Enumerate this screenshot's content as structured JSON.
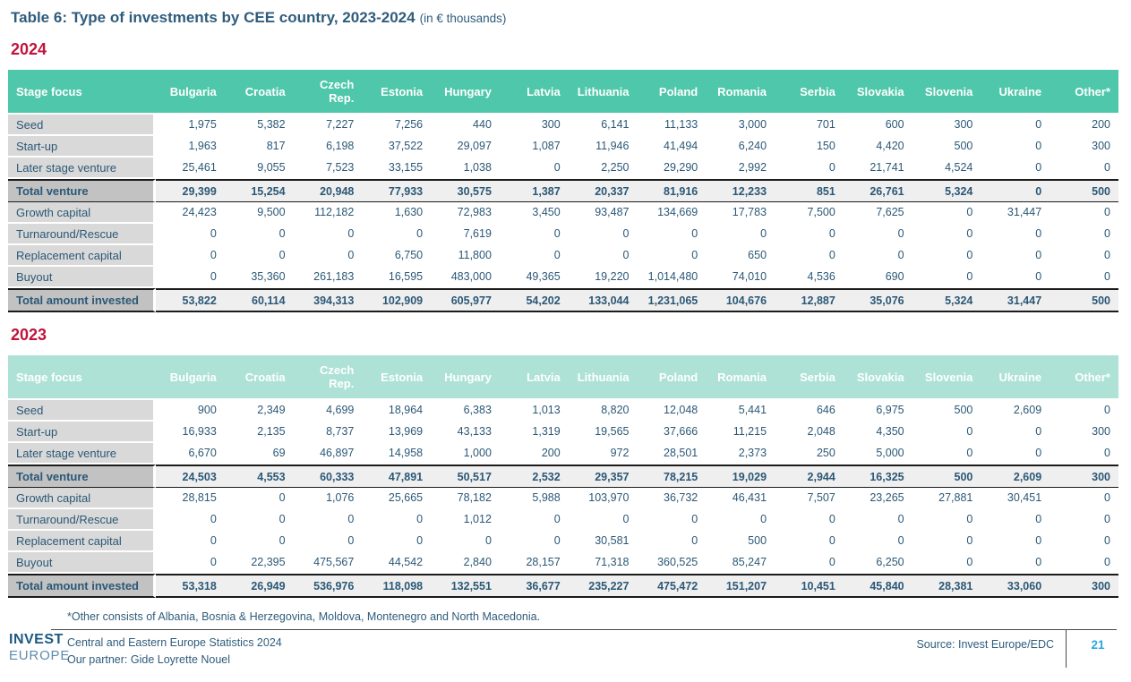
{
  "title": {
    "main": "Table 6: Type of investments by CEE country, 2023-2024",
    "unit": "(in € thousands)"
  },
  "columns": [
    "Stage focus",
    "Bulgaria",
    "Croatia",
    "Czech Rep.",
    "Estonia",
    "Hungary",
    "Latvia",
    "Lithuania",
    "Poland",
    "Romania",
    "Serbia",
    "Slovakia",
    "Slovenia",
    "Ukraine",
    "Other*"
  ],
  "tables": [
    {
      "year": "2024",
      "rows": [
        {
          "label": "Seed",
          "values": [
            "1,975",
            "5,382",
            "7,227",
            "7,256",
            "440",
            "300",
            "6,141",
            "11,133",
            "3,000",
            "701",
            "600",
            "300",
            "0",
            "200"
          ]
        },
        {
          "label": "Start-up",
          "values": [
            "1,963",
            "817",
            "6,198",
            "37,522",
            "29,097",
            "1,087",
            "11,946",
            "41,494",
            "6,240",
            "150",
            "4,420",
            "500",
            "0",
            "300"
          ]
        },
        {
          "label": "Later stage venture",
          "values": [
            "25,461",
            "9,055",
            "7,523",
            "33,155",
            "1,038",
            "0",
            "2,250",
            "29,290",
            "2,992",
            "0",
            "21,741",
            "4,524",
            "0",
            "0"
          ]
        },
        {
          "label": "Total venture",
          "total": true,
          "values": [
            "29,399",
            "15,254",
            "20,948",
            "77,933",
            "30,575",
            "1,387",
            "20,337",
            "81,916",
            "12,233",
            "851",
            "26,761",
            "5,324",
            "0",
            "500"
          ]
        },
        {
          "label": "Growth capital",
          "values": [
            "24,423",
            "9,500",
            "112,182",
            "1,630",
            "72,983",
            "3,450",
            "93,487",
            "134,669",
            "17,783",
            "7,500",
            "7,625",
            "0",
            "31,447",
            "0"
          ]
        },
        {
          "label": "Turnaround/Rescue",
          "values": [
            "0",
            "0",
            "0",
            "0",
            "7,619",
            "0",
            "0",
            "0",
            "0",
            "0",
            "0",
            "0",
            "0",
            "0"
          ]
        },
        {
          "label": "Replacement capital",
          "values": [
            "0",
            "0",
            "0",
            "6,750",
            "11,800",
            "0",
            "0",
            "0",
            "650",
            "0",
            "0",
            "0",
            "0",
            "0"
          ]
        },
        {
          "label": "Buyout",
          "values": [
            "0",
            "35,360",
            "261,183",
            "16,595",
            "483,000",
            "49,365",
            "19,220",
            "1,014,480",
            "74,010",
            "4,536",
            "690",
            "0",
            "0",
            "0"
          ]
        },
        {
          "label": "Total amount invested",
          "total": true,
          "values": [
            "53,822",
            "60,114",
            "394,313",
            "102,909",
            "605,977",
            "54,202",
            "133,044",
            "1,231,065",
            "104,676",
            "12,887",
            "35,076",
            "5,324",
            "31,447",
            "500"
          ]
        }
      ]
    },
    {
      "year": "2023",
      "rows": [
        {
          "label": "Seed",
          "values": [
            "900",
            "2,349",
            "4,699",
            "18,964",
            "6,383",
            "1,013",
            "8,820",
            "12,048",
            "5,441",
            "646",
            "6,975",
            "500",
            "2,609",
            "0"
          ]
        },
        {
          "label": "Start-up",
          "values": [
            "16,933",
            "2,135",
            "8,737",
            "13,969",
            "43,133",
            "1,319",
            "19,565",
            "37,666",
            "11,215",
            "2,048",
            "4,350",
            "0",
            "0",
            "300"
          ]
        },
        {
          "label": "Later stage venture",
          "values": [
            "6,670",
            "69",
            "46,897",
            "14,958",
            "1,000",
            "200",
            "972",
            "28,501",
            "2,373",
            "250",
            "5,000",
            "0",
            "0",
            "0"
          ]
        },
        {
          "label": "Total venture",
          "total": true,
          "values": [
            "24,503",
            "4,553",
            "60,333",
            "47,891",
            "50,517",
            "2,532",
            "29,357",
            "78,215",
            "19,029",
            "2,944",
            "16,325",
            "500",
            "2,609",
            "300"
          ]
        },
        {
          "label": "Growth capital",
          "values": [
            "28,815",
            "0",
            "1,076",
            "25,665",
            "78,182",
            "5,988",
            "103,970",
            "36,732",
            "46,431",
            "7,507",
            "23,265",
            "27,881",
            "30,451",
            "0"
          ]
        },
        {
          "label": "Turnaround/Rescue",
          "values": [
            "0",
            "0",
            "0",
            "0",
            "1,012",
            "0",
            "0",
            "0",
            "0",
            "0",
            "0",
            "0",
            "0",
            "0"
          ]
        },
        {
          "label": "Replacement capital",
          "values": [
            "0",
            "0",
            "0",
            "0",
            "0",
            "0",
            "30,581",
            "0",
            "500",
            "0",
            "0",
            "0",
            "0",
            "0"
          ]
        },
        {
          "label": "Buyout",
          "values": [
            "0",
            "22,395",
            "475,567",
            "44,542",
            "2,840",
            "28,157",
            "71,318",
            "360,525",
            "85,247",
            "0",
            "6,250",
            "0",
            "0",
            "0"
          ]
        },
        {
          "label": "Total amount invested",
          "total": true,
          "values": [
            "53,318",
            "26,949",
            "536,976",
            "118,098",
            "132,551",
            "36,677",
            "235,227",
            "475,472",
            "151,207",
            "10,451",
            "45,840",
            "28,381",
            "33,060",
            "300"
          ]
        }
      ]
    }
  ],
  "footnote": "*Other consists of Albania, Bosnia & Herzegovina, Moldova, Montenegro and North Macedonia.",
  "footer": {
    "logo_line1": "INVEST",
    "logo_line2": "EUROPE",
    "publication": "Central and Eastern Europe Statistics 2024",
    "partner": "Our partner: Gide Loyrette Nouel",
    "source": "Source: Invest Europe/EDC",
    "page": "21"
  },
  "colors": {
    "header_2024": "#4fc7ab",
    "header_2023": "#aee2d6",
    "year_heading": "#c0143c",
    "text": "#2f5c7c",
    "cell_text": "#2b5876",
    "page_number": "#29a9e1",
    "row_label_bg": "#d9d9d9",
    "total_label_bg": "#c2c2c2",
    "total_row_bg": "#efefef"
  }
}
